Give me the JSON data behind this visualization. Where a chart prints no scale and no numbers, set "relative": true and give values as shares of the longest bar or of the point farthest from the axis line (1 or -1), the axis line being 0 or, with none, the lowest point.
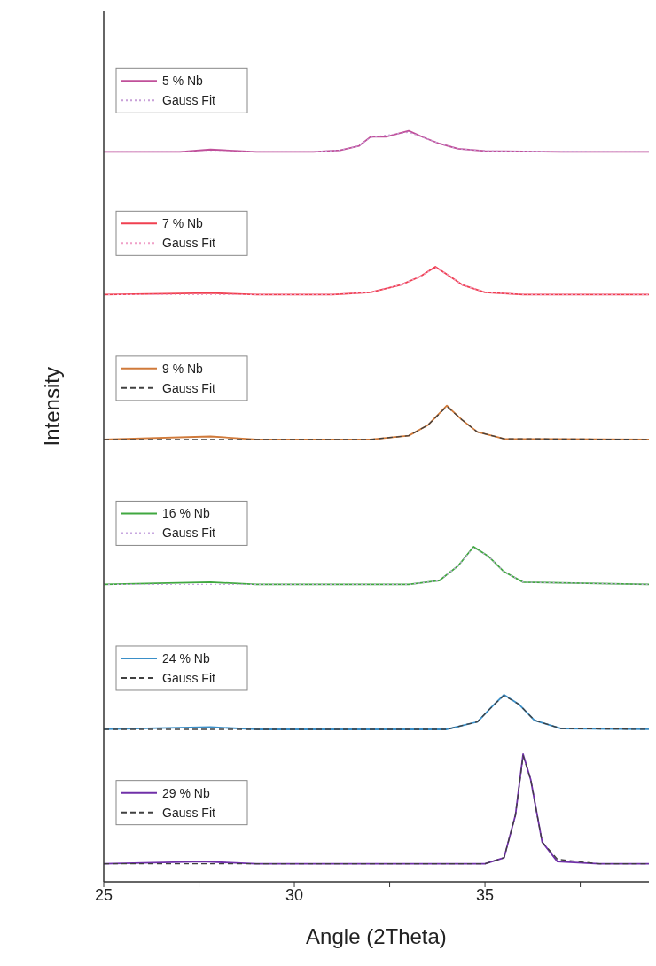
{
  "chart_data": {
    "type": "line",
    "xlabel": "Angle (2Theta)",
    "ylabel": "Intensity",
    "relative": true,
    "legend": "left",
    "marker": "none",
    "xlim": [
      25,
      39.3
    ],
    "xticks": [
      25,
      {
        "value": 27.5,
        "label": null
      },
      30,
      {
        "value": 32.5,
        "label": null
      },
      35,
      {
        "value": 37.5,
        "label": null
      }
    ],
    "series": [
      {
        "name": "5 % Nb",
        "color": "#c0509a",
        "line_style": "solid",
        "x": [
          25,
          27,
          27.8,
          29,
          30.5,
          31.2,
          31.7,
          32.0,
          32.4,
          33.0,
          33.4,
          33.8,
          34.3,
          35,
          37,
          39.3
        ],
        "values": [
          0.972,
          0.972,
          0.975,
          0.972,
          0.972,
          0.974,
          0.98,
          0.992,
          0.992,
          1.0,
          0.991,
          0.983,
          0.976,
          0.973,
          0.972,
          0.972
        ]
      },
      {
        "name": "Gauss Fit",
        "color": "#c8a0d8",
        "line_style": "dotted",
        "x": [
          25,
          29,
          30.5,
          31.2,
          31.7,
          32.0,
          32.4,
          33.0,
          33.4,
          33.8,
          34.3,
          35,
          39.3
        ],
        "values": [
          0.972,
          0.972,
          0.972,
          0.974,
          0.98,
          0.991,
          0.994,
          0.998,
          0.991,
          0.983,
          0.976,
          0.973,
          0.972
        ]
      },
      {
        "name": "7 % Nb",
        "color": "#f04050",
        "line_style": "solid",
        "x": [
          25,
          27.8,
          29,
          31,
          32,
          32.8,
          33.3,
          33.7,
          34.0,
          34.4,
          35,
          36,
          39.3
        ],
        "values": [
          0.782,
          0.784,
          0.782,
          0.782,
          0.785,
          0.795,
          0.806,
          0.819,
          0.809,
          0.795,
          0.785,
          0.782,
          0.782
        ]
      },
      {
        "name": "Gauss Fit",
        "color": "#f0a0c8",
        "line_style": "dotted",
        "x": [
          25,
          31,
          32,
          32.8,
          33.3,
          33.7,
          34.0,
          34.4,
          35,
          36,
          39.3
        ],
        "values": [
          0.782,
          0.782,
          0.785,
          0.795,
          0.806,
          0.818,
          0.809,
          0.795,
          0.785,
          0.782,
          0.782
        ]
      },
      {
        "name": "9 % Nb",
        "color": "#d07a3a",
        "line_style": "solid",
        "x": [
          25,
          27.8,
          29,
          32,
          33,
          33.5,
          34.0,
          34.4,
          34.8,
          35.5,
          39.3
        ],
        "values": [
          0.589,
          0.593,
          0.589,
          0.589,
          0.594,
          0.608,
          0.634,
          0.615,
          0.599,
          0.59,
          0.589
        ]
      },
      {
        "name": "Gauss Fit",
        "color": "#404040",
        "line_style": "dashed",
        "x": [
          25,
          32,
          33,
          33.5,
          34.0,
          34.4,
          34.8,
          35.5,
          39.3
        ],
        "values": [
          0.589,
          0.589,
          0.594,
          0.608,
          0.633,
          0.615,
          0.599,
          0.59,
          0.589
        ]
      },
      {
        "name": "16 % Nb",
        "color": "#40a840",
        "line_style": "solid",
        "x": [
          25,
          27.8,
          29,
          33,
          33.8,
          34.3,
          34.7,
          35.1,
          35.5,
          36,
          39.3
        ],
        "values": [
          0.396,
          0.399,
          0.396,
          0.396,
          0.401,
          0.421,
          0.446,
          0.433,
          0.413,
          0.399,
          0.396
        ]
      },
      {
        "name": "Gauss Fit",
        "color": "#c8a8e0",
        "line_style": "dotted",
        "x": [
          25,
          33,
          33.8,
          34.3,
          34.7,
          35.1,
          35.5,
          36,
          39.3
        ],
        "values": [
          0.396,
          0.396,
          0.401,
          0.421,
          0.445,
          0.433,
          0.413,
          0.399,
          0.396
        ]
      },
      {
        "name": "24 % Nb",
        "color": "#3a8fc8",
        "line_style": "solid",
        "x": [
          25,
          27.8,
          29,
          34,
          34.8,
          35.2,
          35.5,
          35.9,
          36.3,
          37,
          39.3
        ],
        "values": [
          0.203,
          0.206,
          0.203,
          0.203,
          0.213,
          0.234,
          0.249,
          0.236,
          0.215,
          0.204,
          0.203
        ]
      },
      {
        "name": "Gauss Fit",
        "color": "#404040",
        "line_style": "dashed",
        "x": [
          25,
          34,
          34.8,
          35.2,
          35.5,
          35.9,
          36.3,
          37,
          39.3
        ],
        "values": [
          0.203,
          0.203,
          0.213,
          0.234,
          0.248,
          0.236,
          0.215,
          0.204,
          0.203
        ]
      },
      {
        "name": "29 % Nb",
        "color": "#7030a8",
        "line_style": "solid",
        "x": [
          25,
          27.6,
          29,
          35,
          35.5,
          35.8,
          36.0,
          36.2,
          36.5,
          36.9,
          38,
          39.3
        ],
        "values": [
          0.024,
          0.027,
          0.024,
          0.024,
          0.032,
          0.089,
          0.17,
          0.136,
          0.053,
          0.027,
          0.024,
          0.024
        ]
      },
      {
        "name": "Gauss Fit",
        "color": "#404040",
        "line_style": "dashed",
        "x": [
          25,
          35,
          35.5,
          35.8,
          36.0,
          36.2,
          36.5,
          36.9,
          38,
          39.3
        ],
        "values": [
          0.024,
          0.024,
          0.032,
          0.089,
          0.168,
          0.136,
          0.053,
          0.03,
          0.024,
          0.024
        ]
      }
    ]
  }
}
